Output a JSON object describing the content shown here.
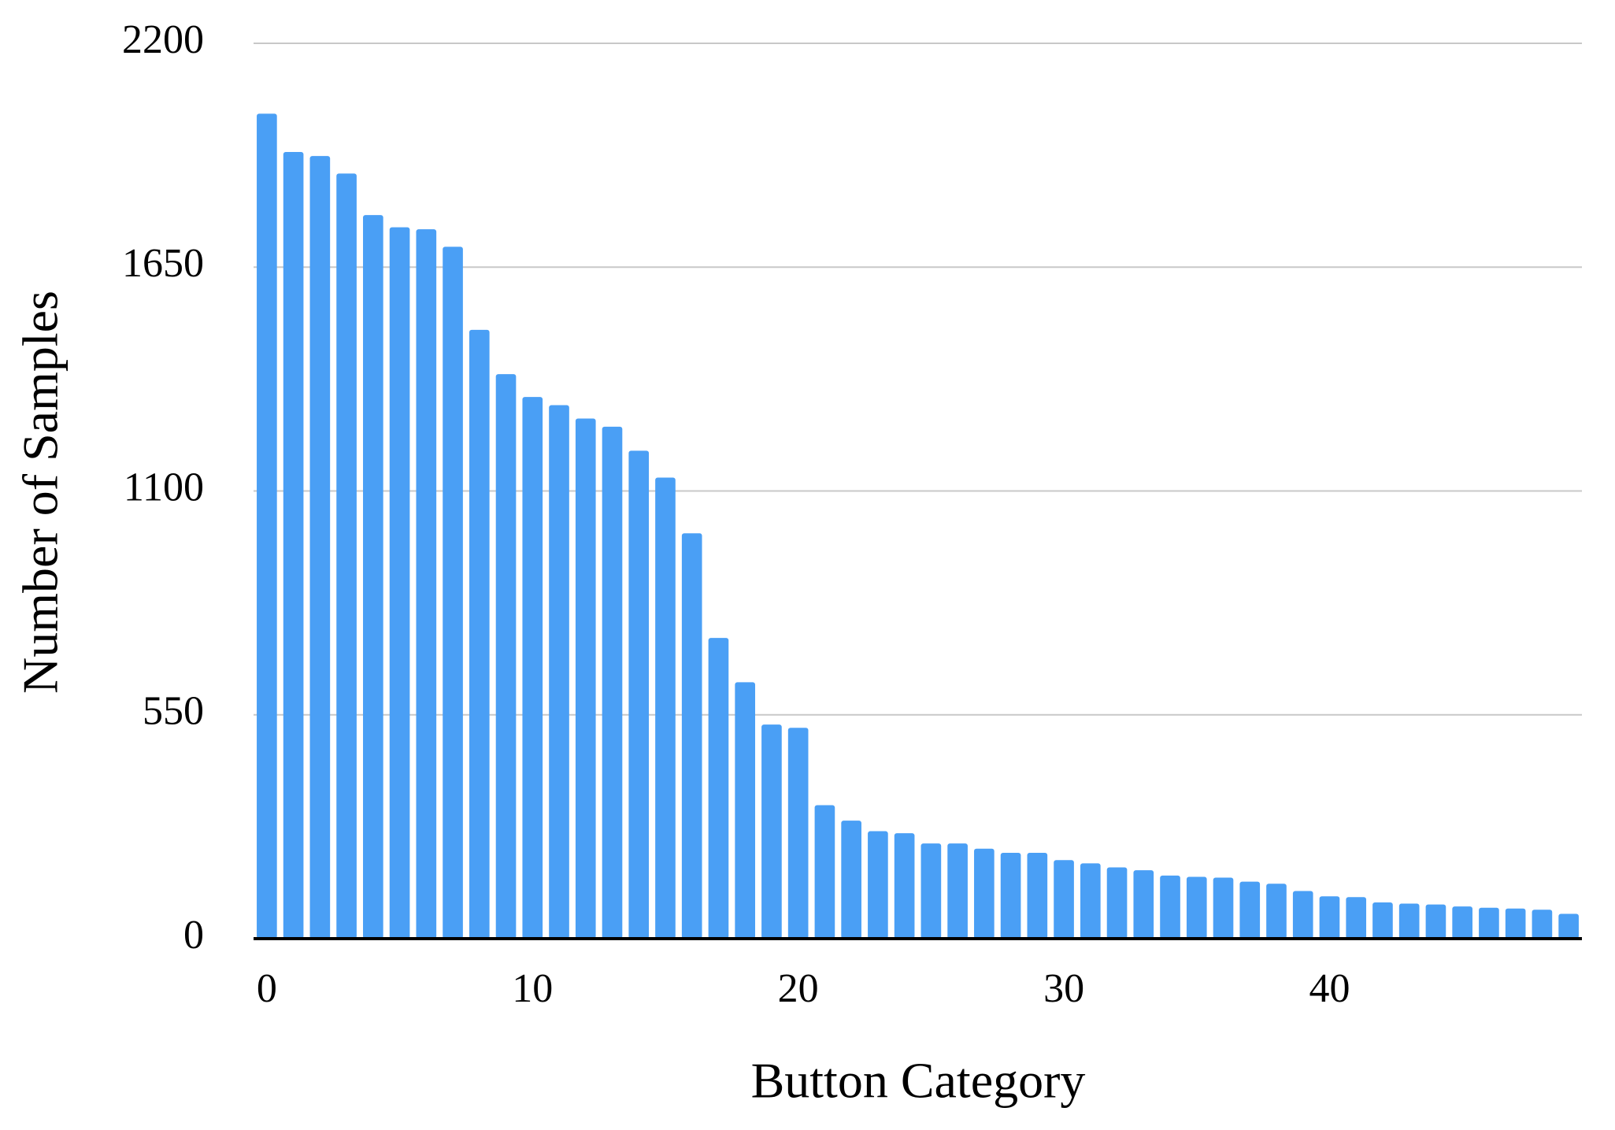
{
  "chart_data": {
    "type": "bar",
    "x_label": "Button Category",
    "y_label": "Number of Samples",
    "categories": [
      0,
      null,
      null,
      null,
      null,
      null,
      null,
      null,
      null,
      null,
      10,
      null,
      null,
      null,
      null,
      null,
      null,
      null,
      null,
      null,
      20,
      null,
      null,
      null,
      null,
      null,
      null,
      null,
      null,
      null,
      30,
      null,
      null,
      null,
      null,
      null,
      null,
      null,
      null,
      null,
      40,
      null,
      null,
      null,
      null,
      null,
      null,
      null,
      null,
      null
    ],
    "values": [
      2027,
      1933,
      1923,
      1880,
      1778,
      1748,
      1743,
      1700,
      1496,
      1387,
      1331,
      1311,
      1278,
      1258,
      1199,
      1133,
      996,
      739,
      630,
      526,
      518,
      328,
      290,
      264,
      259,
      234,
      234,
      221,
      211,
      211,
      193,
      185,
      175,
      168,
      155,
      152,
      150,
      140,
      135,
      117,
      104,
      102,
      89,
      86,
      84,
      79,
      76,
      74,
      71,
      61
    ],
    "color": "#4a9ff5",
    "ylim": [
      0,
      2200
    ],
    "yticks": [
      0,
      550,
      1100,
      1650,
      2200
    ],
    "grid": true
  }
}
